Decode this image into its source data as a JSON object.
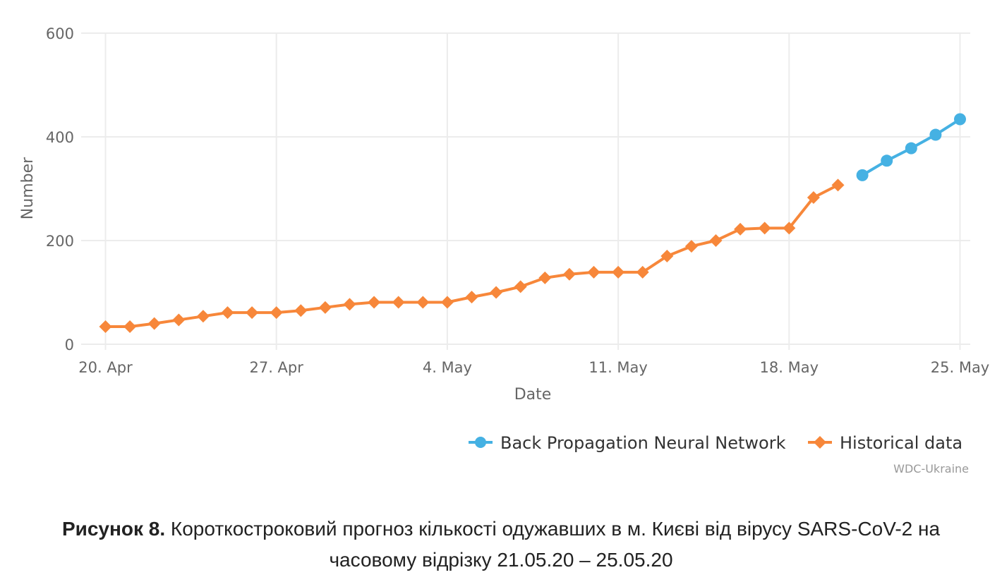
{
  "chart_data": {
    "type": "line",
    "title": "",
    "xlabel": "Date",
    "ylabel": "Number",
    "ylim": [
      0,
      600
    ],
    "yticks": [
      0,
      200,
      400,
      600
    ],
    "xticks": [
      "20. Apr",
      "27. Apr",
      "4. May",
      "11. May",
      "18. May",
      "25. May"
    ],
    "grid": true,
    "legend_position": "bottom-right",
    "series": [
      {
        "name": "Back Propagation Neural Network",
        "color": "#45B1E3",
        "marker": "circle",
        "x": [
          "21. May",
          "22. May",
          "23. May",
          "24. May",
          "25. May"
        ],
        "day_index": [
          31,
          32,
          33,
          34,
          35
        ],
        "values": [
          326,
          354,
          378,
          404,
          434
        ]
      },
      {
        "name": "Historical data",
        "color": "#F7873A",
        "marker": "diamond",
        "x": [
          "20. Apr",
          "21. Apr",
          "22. Apr",
          "23. Apr",
          "24. Apr",
          "25. Apr",
          "26. Apr",
          "27. Apr",
          "28. Apr",
          "29. Apr",
          "30. Apr",
          "1. May",
          "2. May",
          "3. May",
          "4. May",
          "5. May",
          "6. May",
          "7. May",
          "8. May",
          "9. May",
          "10. May",
          "11. May",
          "12. May",
          "13. May",
          "14. May",
          "15. May",
          "16. May",
          "17. May",
          "18. May",
          "19. May",
          "20. May"
        ],
        "day_index": [
          0,
          1,
          2,
          3,
          4,
          5,
          6,
          7,
          8,
          9,
          10,
          11,
          12,
          13,
          14,
          15,
          16,
          17,
          18,
          19,
          20,
          21,
          22,
          23,
          24,
          25,
          26,
          27,
          28,
          29,
          30
        ],
        "values": [
          34,
          34,
          40,
          47,
          54,
          61,
          61,
          61,
          65,
          71,
          77,
          81,
          81,
          81,
          81,
          91,
          100,
          111,
          128,
          135,
          139,
          139,
          139,
          170,
          189,
          200,
          222,
          224,
          224,
          283,
          307
        ]
      }
    ]
  },
  "legend": {
    "items": [
      {
        "label": "Back Propagation Neural Network",
        "color": "#45B1E3",
        "marker": "circle"
      },
      {
        "label": "Historical data",
        "color": "#F7873A",
        "marker": "diamond"
      }
    ]
  },
  "credit": "WDC-Ukraine",
  "caption": {
    "label": "Рисунок 8.",
    "line1": " Короткостроковий прогноз кількості одужавших в м. Києві від вірусу SARS-CoV-2 на",
    "line2": "часовому відрізку 21.05.20 – 25.05.20"
  }
}
